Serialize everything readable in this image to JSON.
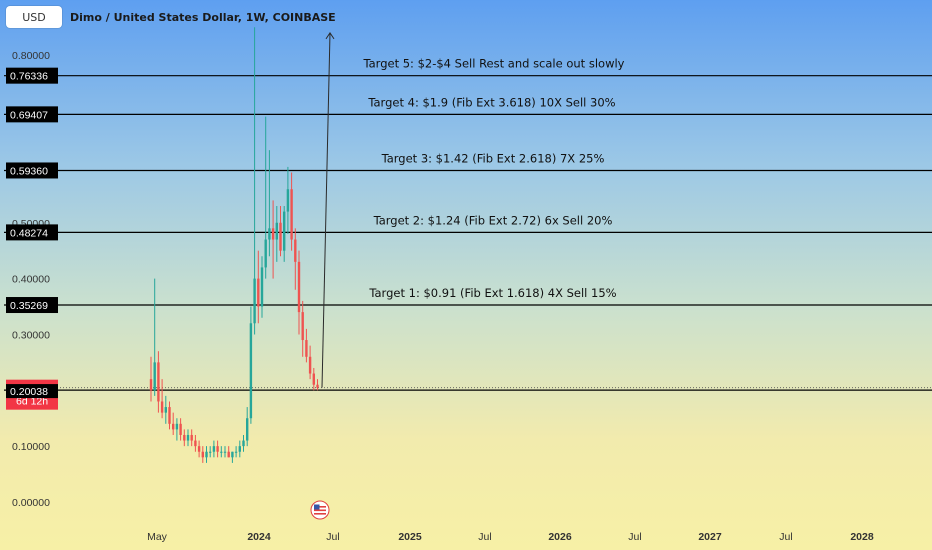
{
  "header": {
    "currency_button": "USD",
    "title": "Dimo / United States Dollar, 1W, COINBASE"
  },
  "colors": {
    "up": "#26a69a",
    "down": "#ef5350",
    "level_line": "#000000",
    "price_label_bg": "#000000",
    "current_price_bg": "#f23645"
  },
  "chart_data": {
    "type": "candlestick",
    "title": "Dimo / United States Dollar, 1W, COINBASE",
    "ylim": [
      -0.03,
      0.85
    ],
    "grid": false,
    "y_ticks": [
      "0.80000",
      "0.50000",
      "0.40000",
      "0.30000",
      "0.10000",
      "0.00000"
    ],
    "y_tick_values": [
      0.8,
      0.5,
      0.4,
      0.3,
      0.1,
      0.0
    ],
    "x_ticks": [
      {
        "label": "May",
        "bold": false
      },
      {
        "label": "2024",
        "bold": true
      },
      {
        "label": "Jul",
        "bold": false
      },
      {
        "label": "2025",
        "bold": true
      },
      {
        "label": "Jul",
        "bold": false
      },
      {
        "label": "2026",
        "bold": true
      },
      {
        "label": "Jul",
        "bold": false
      },
      {
        "label": "2027",
        "bold": true
      },
      {
        "label": "Jul",
        "bold": false
      },
      {
        "label": "2028",
        "bold": true
      }
    ],
    "levels": [
      {
        "price": 0.76336,
        "label": "0.76336",
        "text": "Target 5: $2-$4  Sell Rest and scale out slowly"
      },
      {
        "price": 0.69407,
        "label": "0.69407",
        "text": "Target 4: $1.9 (Fib Ext 3.618) 10X Sell 30%"
      },
      {
        "price": 0.5936,
        "label": "0.59360",
        "text": "Target 3: $1.42 (Fib Ext 2.618) 7X 25%"
      },
      {
        "price": 0.48274,
        "label": "0.48274",
        "text": "Target 2: $1.24 (Fib Ext 2.72) 6x Sell 20%"
      },
      {
        "price": 0.35269,
        "label": "0.35269",
        "text": "Target 1: $0.91 (Fib Ext 1.618) 4X Sell 15%"
      },
      {
        "price": 0.20038,
        "label": "0.20038",
        "text": ""
      }
    ],
    "current_price": {
      "value": 0.2047,
      "label": "0.20470",
      "countdown": "6d 12h"
    },
    "projection_arrow": {
      "from_price": 0.205,
      "to_price": 0.84
    },
    "candles": [
      [
        0.22,
        0.26,
        0.18,
        0.2
      ],
      [
        0.2,
        0.4,
        0.19,
        0.25
      ],
      [
        0.25,
        0.27,
        0.16,
        0.18
      ],
      [
        0.18,
        0.22,
        0.15,
        0.16
      ],
      [
        0.16,
        0.19,
        0.14,
        0.17
      ],
      [
        0.17,
        0.18,
        0.13,
        0.14
      ],
      [
        0.14,
        0.16,
        0.12,
        0.13
      ],
      [
        0.13,
        0.15,
        0.11,
        0.14
      ],
      [
        0.14,
        0.15,
        0.11,
        0.12
      ],
      [
        0.12,
        0.13,
        0.1,
        0.11
      ],
      [
        0.11,
        0.13,
        0.1,
        0.12
      ],
      [
        0.12,
        0.13,
        0.1,
        0.11
      ],
      [
        0.11,
        0.12,
        0.09,
        0.1
      ],
      [
        0.1,
        0.11,
        0.08,
        0.09
      ],
      [
        0.09,
        0.1,
        0.07,
        0.08
      ],
      [
        0.08,
        0.1,
        0.07,
        0.09
      ],
      [
        0.09,
        0.1,
        0.08,
        0.09
      ],
      [
        0.09,
        0.11,
        0.08,
        0.1
      ],
      [
        0.1,
        0.11,
        0.08,
        0.09
      ],
      [
        0.09,
        0.1,
        0.08,
        0.09
      ],
      [
        0.09,
        0.1,
        0.08,
        0.09
      ],
      [
        0.09,
        0.1,
        0.08,
        0.08
      ],
      [
        0.08,
        0.09,
        0.07,
        0.09
      ],
      [
        0.09,
        0.1,
        0.08,
        0.09
      ],
      [
        0.09,
        0.11,
        0.08,
        0.1
      ],
      [
        0.1,
        0.12,
        0.09,
        0.11
      ],
      [
        0.11,
        0.17,
        0.1,
        0.15
      ],
      [
        0.15,
        0.35,
        0.14,
        0.32
      ],
      [
        0.32,
        0.85,
        0.3,
        0.4
      ],
      [
        0.4,
        0.45,
        0.32,
        0.35
      ],
      [
        0.35,
        0.44,
        0.33,
        0.42
      ],
      [
        0.42,
        0.69,
        0.4,
        0.47
      ],
      [
        0.47,
        0.63,
        0.44,
        0.49
      ],
      [
        0.49,
        0.54,
        0.4,
        0.47
      ],
      [
        0.47,
        0.53,
        0.43,
        0.5
      ],
      [
        0.5,
        0.53,
        0.44,
        0.45
      ],
      [
        0.45,
        0.53,
        0.43,
        0.52
      ],
      [
        0.52,
        0.6,
        0.48,
        0.56
      ],
      [
        0.56,
        0.59,
        0.45,
        0.47
      ],
      [
        0.47,
        0.49,
        0.38,
        0.43
      ],
      [
        0.43,
        0.45,
        0.3,
        0.34
      ],
      [
        0.34,
        0.36,
        0.26,
        0.29
      ],
      [
        0.29,
        0.31,
        0.25,
        0.26
      ],
      [
        0.26,
        0.28,
        0.22,
        0.23
      ],
      [
        0.23,
        0.24,
        0.2,
        0.21
      ],
      [
        0.21,
        0.22,
        0.2,
        0.2047
      ]
    ]
  }
}
